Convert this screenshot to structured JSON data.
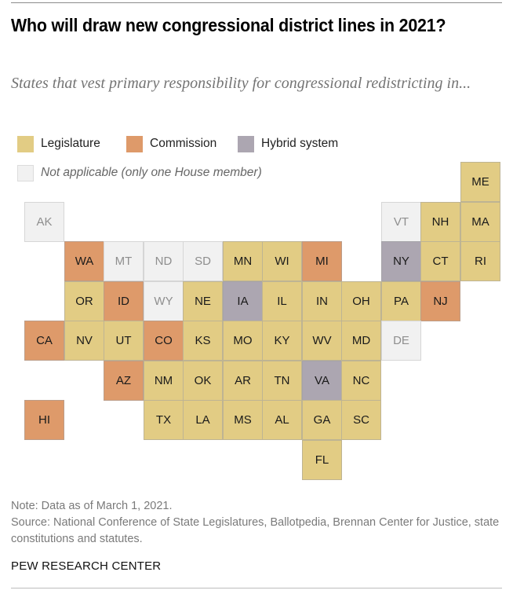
{
  "title": "Who will draw new congressional district lines in 2021?",
  "subtitle": "States that vest primary responsibility for congressional redistricting in...",
  "colors": {
    "legislature": "#e2cc84",
    "commission": "#de9a6a",
    "hybrid": "#aca6b1",
    "not_applicable": "#f1f1f1"
  },
  "legend": [
    {
      "key": "legislature",
      "label": "Legislature"
    },
    {
      "key": "commission",
      "label": "Commission"
    },
    {
      "key": "hybrid",
      "label": "Hybrid system"
    },
    {
      "key": "not_applicable",
      "label": "Not applicable (only one House member)"
    }
  ],
  "chart_data": {
    "type": "heatmap",
    "title": "Who will draw new congressional district lines in 2021?",
    "subtitle": "States that vest primary responsibility for congressional redistricting in...",
    "categories": [
      "Legislature",
      "Commission",
      "Hybrid system",
      "Not applicable (only one House member)"
    ],
    "legend_placement": "top-left",
    "tiles": [
      {
        "state": "ME",
        "row": 0,
        "col": 11,
        "category": "legislature"
      },
      {
        "state": "AK",
        "row": 1,
        "col": 0,
        "category": "not_applicable"
      },
      {
        "state": "VT",
        "row": 1,
        "col": 9,
        "category": "not_applicable"
      },
      {
        "state": "NH",
        "row": 1,
        "col": 10,
        "category": "legislature"
      },
      {
        "state": "MA",
        "row": 1,
        "col": 11,
        "category": "legislature"
      },
      {
        "state": "WA",
        "row": 2,
        "col": 1,
        "category": "commission"
      },
      {
        "state": "MT",
        "row": 2,
        "col": 2,
        "category": "not_applicable"
      },
      {
        "state": "ND",
        "row": 2,
        "col": 3,
        "category": "not_applicable"
      },
      {
        "state": "SD",
        "row": 2,
        "col": 4,
        "category": "not_applicable"
      },
      {
        "state": "MN",
        "row": 2,
        "col": 5,
        "category": "legislature"
      },
      {
        "state": "WI",
        "row": 2,
        "col": 6,
        "category": "legislature"
      },
      {
        "state": "MI",
        "row": 2,
        "col": 7,
        "category": "commission"
      },
      {
        "state": "NY",
        "row": 2,
        "col": 9,
        "category": "hybrid"
      },
      {
        "state": "CT",
        "row": 2,
        "col": 10,
        "category": "legislature"
      },
      {
        "state": "RI",
        "row": 2,
        "col": 11,
        "category": "legislature"
      },
      {
        "state": "OR",
        "row": 3,
        "col": 1,
        "category": "legislature"
      },
      {
        "state": "ID",
        "row": 3,
        "col": 2,
        "category": "commission"
      },
      {
        "state": "WY",
        "row": 3,
        "col": 3,
        "category": "not_applicable"
      },
      {
        "state": "NE",
        "row": 3,
        "col": 4,
        "category": "legislature"
      },
      {
        "state": "IA",
        "row": 3,
        "col": 5,
        "category": "hybrid"
      },
      {
        "state": "IL",
        "row": 3,
        "col": 6,
        "category": "legislature"
      },
      {
        "state": "IN",
        "row": 3,
        "col": 7,
        "category": "legislature"
      },
      {
        "state": "OH",
        "row": 3,
        "col": 8,
        "category": "legislature"
      },
      {
        "state": "PA",
        "row": 3,
        "col": 9,
        "category": "legislature"
      },
      {
        "state": "NJ",
        "row": 3,
        "col": 10,
        "category": "commission"
      },
      {
        "state": "CA",
        "row": 4,
        "col": 0,
        "category": "commission"
      },
      {
        "state": "NV",
        "row": 4,
        "col": 1,
        "category": "legislature"
      },
      {
        "state": "UT",
        "row": 4,
        "col": 2,
        "category": "legislature"
      },
      {
        "state": "CO",
        "row": 4,
        "col": 3,
        "category": "commission"
      },
      {
        "state": "KS",
        "row": 4,
        "col": 4,
        "category": "legislature"
      },
      {
        "state": "MO",
        "row": 4,
        "col": 5,
        "category": "legislature"
      },
      {
        "state": "KY",
        "row": 4,
        "col": 6,
        "category": "legislature"
      },
      {
        "state": "WV",
        "row": 4,
        "col": 7,
        "category": "legislature"
      },
      {
        "state": "MD",
        "row": 4,
        "col": 8,
        "category": "legislature"
      },
      {
        "state": "DE",
        "row": 4,
        "col": 9,
        "category": "not_applicable"
      },
      {
        "state": "AZ",
        "row": 5,
        "col": 2,
        "category": "commission"
      },
      {
        "state": "NM",
        "row": 5,
        "col": 3,
        "category": "legislature"
      },
      {
        "state": "OK",
        "row": 5,
        "col": 4,
        "category": "legislature"
      },
      {
        "state": "AR",
        "row": 5,
        "col": 5,
        "category": "legislature"
      },
      {
        "state": "TN",
        "row": 5,
        "col": 6,
        "category": "legislature"
      },
      {
        "state": "VA",
        "row": 5,
        "col": 7,
        "category": "hybrid"
      },
      {
        "state": "NC",
        "row": 5,
        "col": 8,
        "category": "legislature"
      },
      {
        "state": "HI",
        "row": 6,
        "col": 0,
        "category": "commission"
      },
      {
        "state": "TX",
        "row": 6,
        "col": 3,
        "category": "legislature"
      },
      {
        "state": "LA",
        "row": 6,
        "col": 4,
        "category": "legislature"
      },
      {
        "state": "MS",
        "row": 6,
        "col": 5,
        "category": "legislature"
      },
      {
        "state": "AL",
        "row": 6,
        "col": 6,
        "category": "legislature"
      },
      {
        "state": "GA",
        "row": 6,
        "col": 7,
        "category": "legislature"
      },
      {
        "state": "SC",
        "row": 6,
        "col": 8,
        "category": "legislature"
      },
      {
        "state": "FL",
        "row": 7,
        "col": 7,
        "category": "legislature"
      }
    ]
  },
  "footer": {
    "note": "Note: Data as of March 1, 2021.",
    "source": "Source: National Conference of State Legislatures, Ballotpedia, Brennan Center for Justice, state constitutions and statutes.",
    "brand": "PEW RESEARCH CENTER"
  }
}
